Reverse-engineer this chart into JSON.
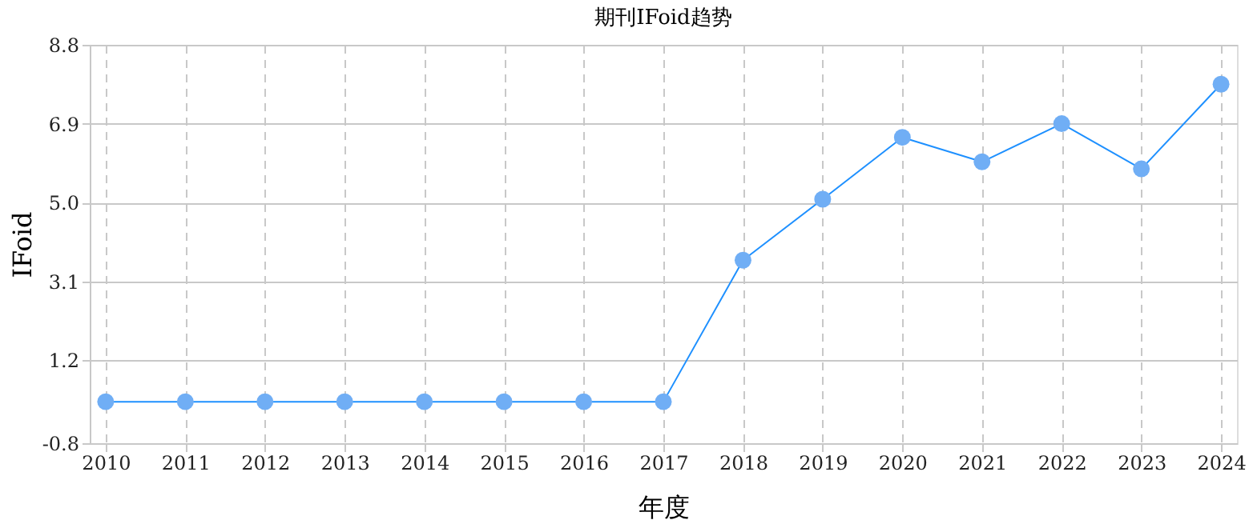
{
  "chart_data": {
    "type": "line",
    "title": "期刊IFoid趋势",
    "xlabel": "年度",
    "ylabel": "IFoid",
    "categories": [
      "2010",
      "2011",
      "2012",
      "2013",
      "2014",
      "2015",
      "2016",
      "2017",
      "2018",
      "2019",
      "2020",
      "2021",
      "2022",
      "2023",
      "2024"
    ],
    "series": [
      {
        "color": "#1e90ff",
        "values": [
          0.2,
          0.2,
          0.2,
          0.2,
          0.2,
          0.2,
          0.2,
          0.2,
          3.61,
          5.08,
          6.57,
          5.98,
          6.9,
          5.81,
          7.85
        ]
      }
    ],
    "ylim": [
      -0.8,
      8.8
    ],
    "yticks": [
      -0.8,
      1.2,
      3.1,
      {
        "value": 5,
        "label": "5.0"
      },
      6.9,
      8.8
    ],
    "grid": true,
    "marker": "circle",
    "line_style": "solid"
  }
}
